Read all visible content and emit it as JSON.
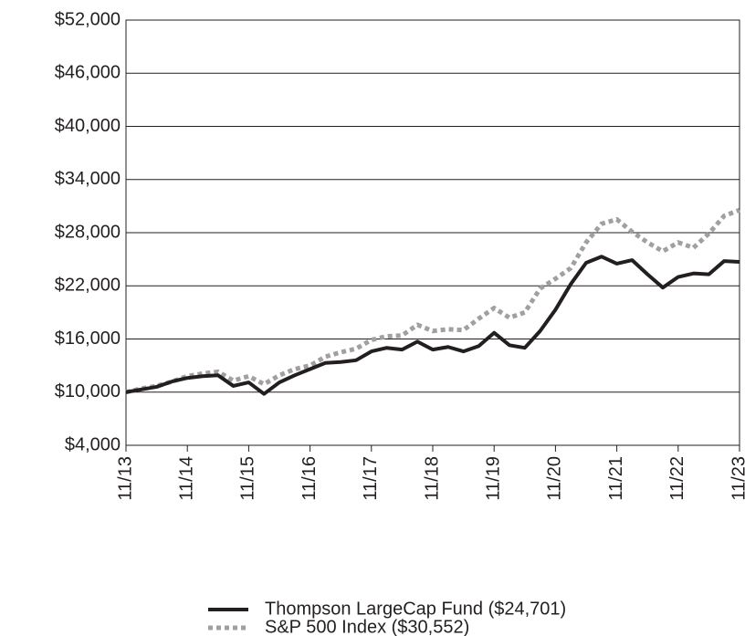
{
  "chart_data": {
    "type": "line",
    "categories": [
      "11/13",
      null,
      null,
      null,
      "11/14",
      null,
      null,
      null,
      "11/15",
      null,
      null,
      null,
      "11/16",
      null,
      null,
      null,
      "11/17",
      null,
      null,
      null,
      "11/18",
      null,
      null,
      null,
      "11/19",
      null,
      null,
      null,
      "11/20",
      null,
      null,
      null,
      "11/21",
      null,
      null,
      null,
      "11/22",
      null,
      null,
      null,
      "11/23"
    ],
    "series": [
      {
        "name": "Thompson LargeCap Fund ($24,701)",
        "color": "#231f20",
        "dash": "solid",
        "values": [
          10000,
          10300,
          10600,
          11200,
          11600,
          11800,
          11900,
          10700,
          11100,
          9800,
          11100,
          11900,
          12600,
          13300,
          13400,
          13600,
          14600,
          15000,
          14800,
          15700,
          14800,
          15100,
          14600,
          15200,
          16700,
          15300,
          15000,
          16900,
          19300,
          22200,
          24600,
          25300,
          24500,
          24900,
          23300,
          21800,
          23000,
          23400,
          23300,
          24800,
          24701
        ]
      },
      {
        "name": "S&P 500 Index ($30,552)",
        "color": "#a0a0a0",
        "dash": "dotted",
        "values": [
          10000,
          10400,
          10700,
          11200,
          11800,
          12100,
          12300,
          11300,
          11800,
          10900,
          11900,
          12600,
          13000,
          14000,
          14500,
          14900,
          15900,
          16300,
          16400,
          17600,
          16900,
          17100,
          17000,
          18300,
          19500,
          18400,
          19000,
          21700,
          22800,
          24000,
          26900,
          29000,
          29500,
          28100,
          26900,
          25900,
          26900,
          26300,
          27900,
          29900,
          30552
        ]
      }
    ],
    "ylim": [
      4000,
      52000
    ],
    "yticks": [
      {
        "value": 4000,
        "label": "$4,000"
      },
      {
        "value": 10000,
        "label": "$10,000"
      },
      {
        "value": 16000,
        "label": "$16,000"
      },
      {
        "value": 22000,
        "label": "$22,000"
      },
      {
        "value": 28000,
        "label": "$28,000"
      },
      {
        "value": 34000,
        "label": "$34,000"
      },
      {
        "value": 40000,
        "label": "$40,000"
      },
      {
        "value": 46000,
        "label": "$46,000"
      },
      {
        "value": 52000,
        "label": "$52,000"
      }
    ],
    "grid": true,
    "legend": "bottom"
  }
}
